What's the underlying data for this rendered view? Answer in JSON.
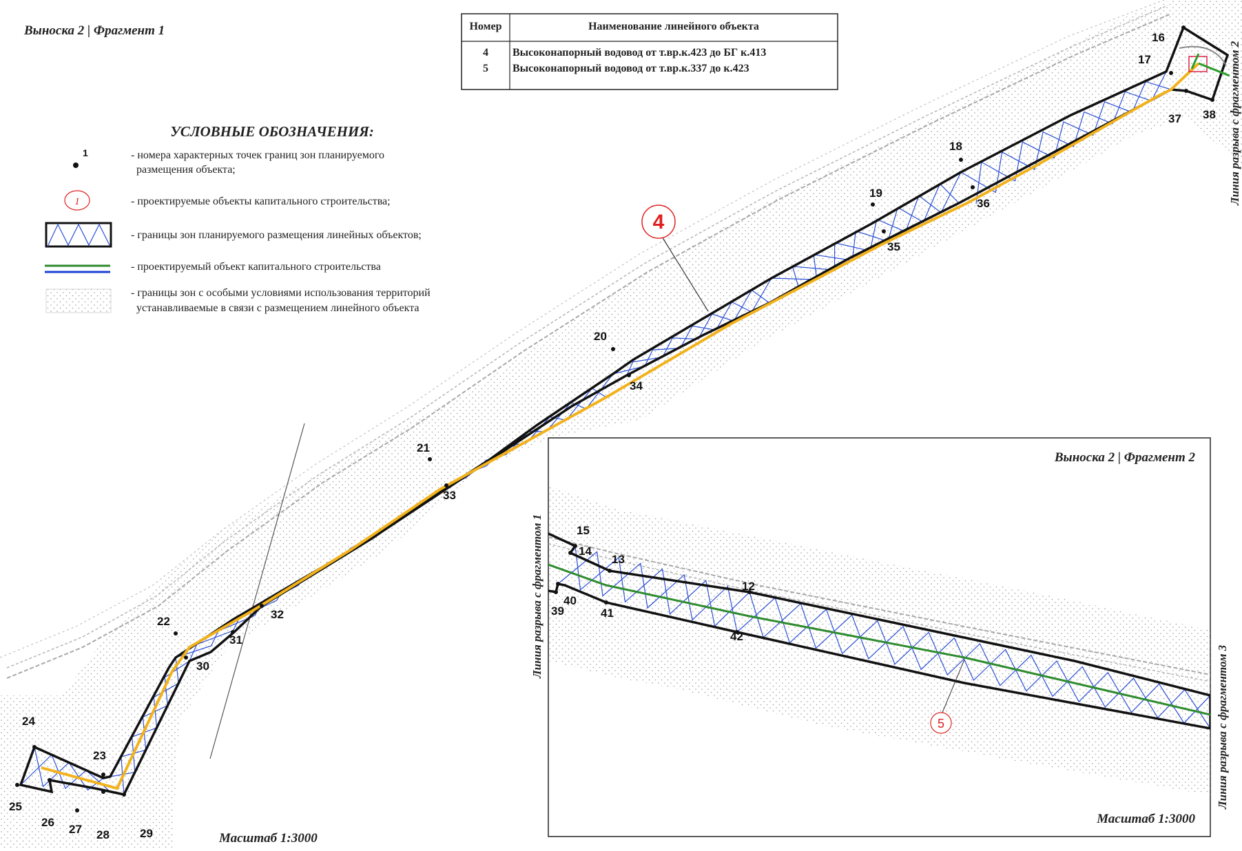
{
  "fragment1": {
    "title": "Выноска 2 | Фрагмент 1",
    "scale": "Масштаб 1:3000",
    "break_line_label": "Линия разрыва с фрагментом 2",
    "object_label": "4",
    "points": [
      "16",
      "17",
      "37",
      "38",
      "18",
      "36",
      "19",
      "35",
      "20",
      "34",
      "21",
      "33",
      "22",
      "31",
      "32",
      "30",
      "24",
      "23",
      "25",
      "26",
      "27",
      "28",
      "29"
    ]
  },
  "fragment2": {
    "title": "Выноска 2 | Фрагмент 2",
    "scale": "Масштаб 1:3000",
    "break_line_left": "Линия разрыва с фрагментом 1",
    "break_line_right": "Линия разрыва с фрагментом 3",
    "object_label": "5",
    "points": [
      "15",
      "14",
      "13",
      "12",
      "39",
      "40",
      "41",
      "42"
    ]
  },
  "object_table": {
    "headers": [
      "Номер",
      "Наименование линейного объекта"
    ],
    "rows": [
      {
        "num": "4",
        "name": "Высоконапорный водовод от т.вр.к.423 до БГ к.413"
      },
      {
        "num": "5",
        "name": "Высоконапорный водовод от т.вр.к.337 до к.423"
      }
    ]
  },
  "legend": {
    "title": "УСЛОВНЫЕ ОБОЗНАЧЕНИЯ:",
    "point_sample_label": "1",
    "circle_sample_label": "1",
    "items": [
      {
        "line1": "- номера характерных точек границ зон планируемого",
        "line2": "размещения объекта;"
      },
      {
        "line1": "- проектируемые объекты капитального строительства;",
        "line2": ""
      },
      {
        "line1": "- границы зон планируемого размещения линейных объектов;",
        "line2": ""
      },
      {
        "line1": "- проектируемый объект капитального строительства",
        "line2": ""
      },
      {
        "line1": "- границы зон с особыми условиями использования территорий",
        "line2": "устанавливаемые в связи с размещением линейного объекта"
      }
    ]
  },
  "colors": {
    "boundary": "#111111",
    "hatch": "#2a4fd6",
    "route4": "#f2b21c",
    "route5": "#2e8b2e",
    "label_red": "#e02020",
    "zone_dots": "#9a9a9a"
  }
}
